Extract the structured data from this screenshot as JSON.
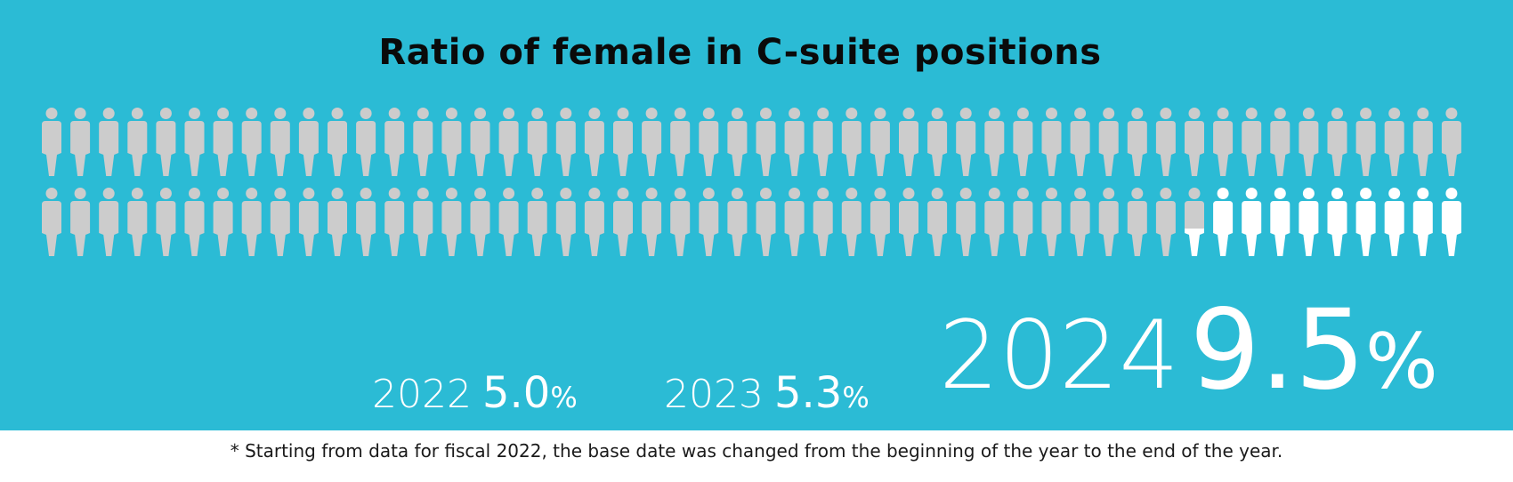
{
  "title": "Ratio of female in C-suite positions",
  "footnote": "* Starting from data for fiscal 2022, the base date was changed from the beginning of the year to the end of the year.",
  "colors": {
    "background": "#2bbbd5",
    "figure_default": "#cccccc",
    "figure_highlight": "#ffffff",
    "title": "#0a0a0a"
  },
  "icons": {
    "figure": "person-icon"
  },
  "chart_data": {
    "type": "pictograph",
    "title": "Ratio of female in C-suite positions",
    "total_figures": 100,
    "rows": 2,
    "per_row": 50,
    "highlighted_fraction_2024": 0.095,
    "highlighted_figures_2024": 9.5,
    "series": [
      {
        "year": "2022",
        "value": 5.0,
        "value_label": "5.0",
        "unit": "%"
      },
      {
        "year": "2023",
        "value": 5.3,
        "value_label": "5.3",
        "unit": "%"
      },
      {
        "year": "2024",
        "value": 9.5,
        "value_label": "9.5",
        "unit": "%"
      }
    ]
  }
}
